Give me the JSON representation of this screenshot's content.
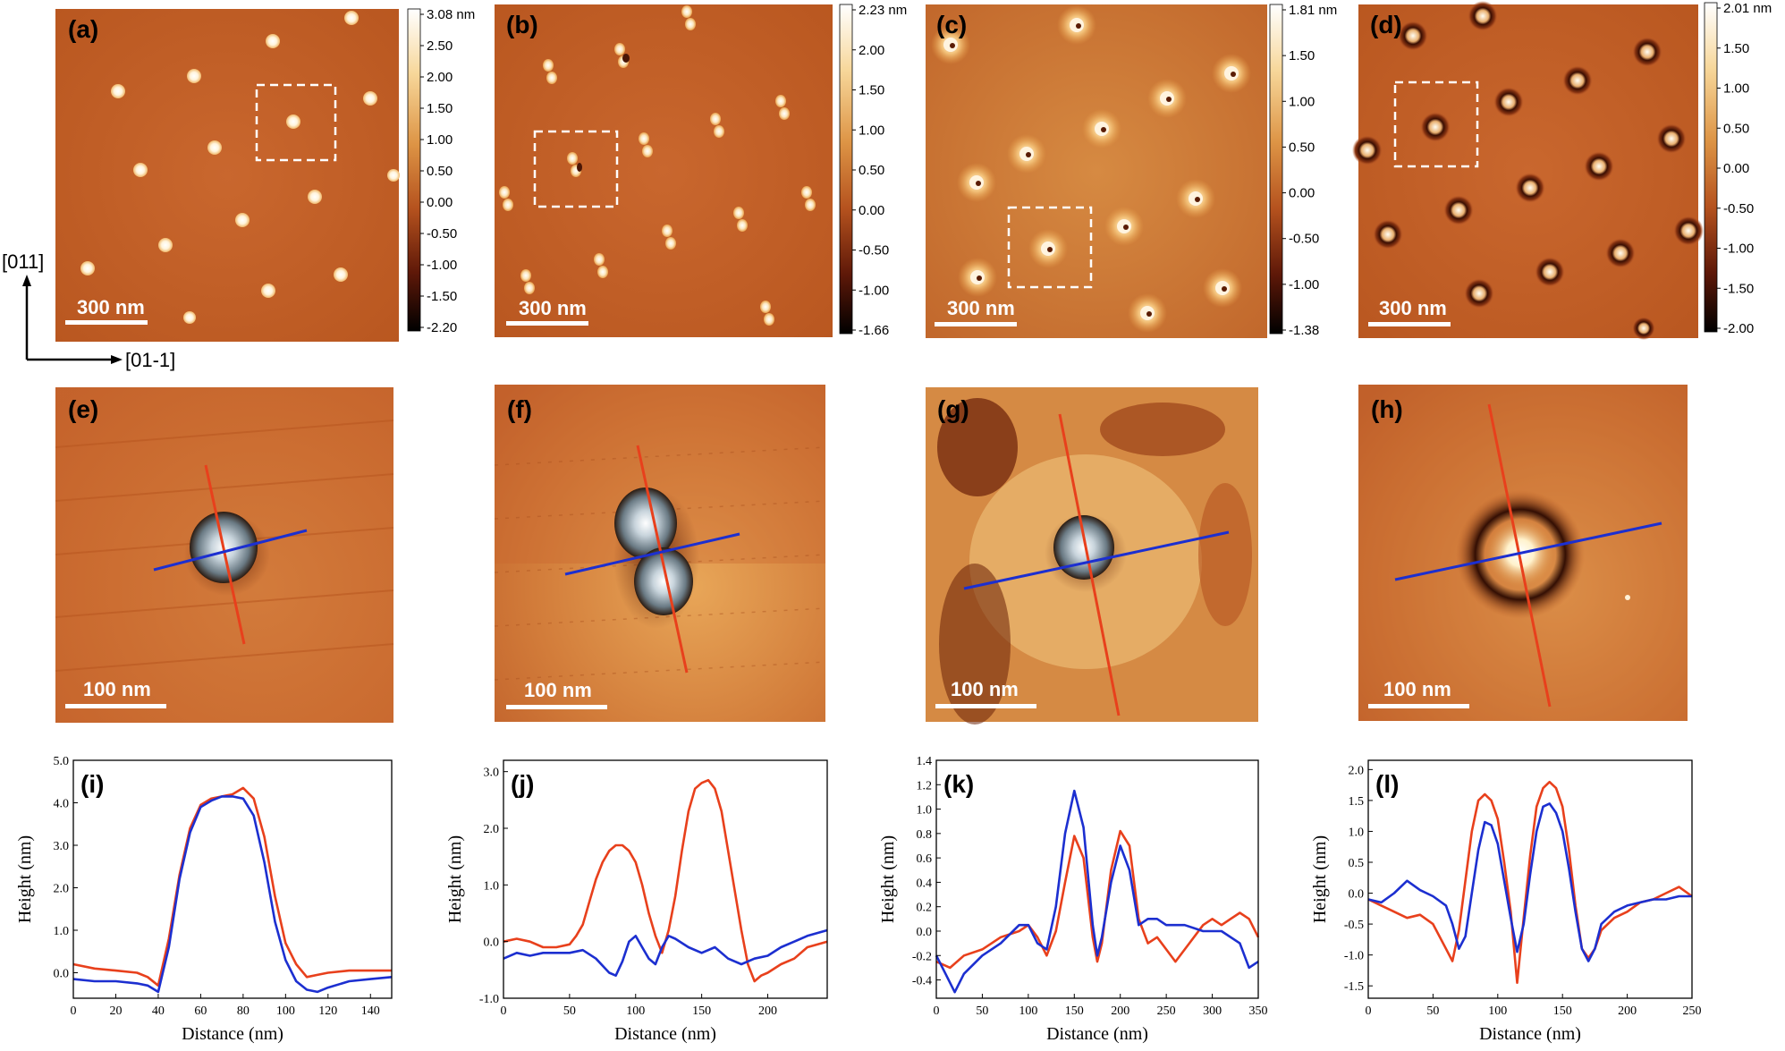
{
  "colors": {
    "afm_base": "#c2602a",
    "afm_light": "#e2a052",
    "red_profile": "#e8401c",
    "blue_profile": "#1c2fd0",
    "scalebar": "#ffffff",
    "box": "#ffffff"
  },
  "directions": {
    "vertical": "[011]",
    "horizontal": "[01-1]"
  },
  "top_panels": [
    {
      "label": "(a)",
      "scalebar": "300 nm",
      "colorbar_ticks": [
        "3.08 nm",
        "2.50",
        "2.00",
        "1.50",
        "1.00",
        "0.50",
        "0.00",
        "-0.50",
        "-1.00",
        "-1.50",
        "-2.20"
      ]
    },
    {
      "label": "(b)",
      "scalebar": "300 nm",
      "colorbar_ticks": [
        "2.23 nm",
        "2.00",
        "1.50",
        "1.00",
        "0.50",
        "0.00",
        "-0.50",
        "-1.00",
        "-1.66"
      ]
    },
    {
      "label": "(c)",
      "scalebar": "300 nm",
      "colorbar_ticks": [
        "1.81 nm",
        "1.50",
        "1.00",
        "0.50",
        "0.00",
        "-0.50",
        "-1.00",
        "-1.38"
      ]
    },
    {
      "label": "(d)",
      "scalebar": "300 nm",
      "colorbar_ticks": [
        "2.01 nm",
        "1.50",
        "1.00",
        "0.50",
        "0.00",
        "-0.50",
        "-1.00",
        "-1.50",
        "-2.00"
      ]
    }
  ],
  "zoom_panels": [
    {
      "label": "(e)",
      "scalebar": "100 nm"
    },
    {
      "label": "(f)",
      "scalebar": "100 nm"
    },
    {
      "label": "(g)",
      "scalebar": "100 nm"
    },
    {
      "label": "(h)",
      "scalebar": "100 nm"
    }
  ],
  "chart_data": [
    {
      "type": "line",
      "label": "(i)",
      "xlabel": "Distance (nm)",
      "ylabel": "Height (nm)",
      "xlim": [
        0,
        150
      ],
      "ylim": [
        -0.6,
        5.0
      ],
      "xticks": [
        "0",
        "20",
        "40",
        "60",
        "80",
        "100",
        "120",
        "140"
      ],
      "yticks": [
        "0.0",
        "1.0",
        "2.0",
        "3.0",
        "4.0",
        "5.0"
      ],
      "series": [
        {
          "name": "red",
          "color": "#e8401c",
          "x": [
            0,
            10,
            20,
            30,
            35,
            40,
            45,
            50,
            55,
            60,
            65,
            70,
            75,
            80,
            85,
            90,
            95,
            100,
            105,
            110,
            115,
            120,
            130,
            140,
            150
          ],
          "y": [
            0.2,
            0.1,
            0.05,
            0.0,
            -0.1,
            -0.3,
            0.8,
            2.3,
            3.4,
            3.95,
            4.1,
            4.15,
            4.2,
            4.35,
            4.1,
            3.2,
            1.8,
            0.7,
            0.2,
            -0.1,
            -0.05,
            0.0,
            0.05,
            0.05,
            0.05
          ]
        },
        {
          "name": "blue",
          "color": "#1c2fd0",
          "x": [
            0,
            10,
            20,
            30,
            35,
            40,
            45,
            50,
            55,
            60,
            65,
            70,
            75,
            80,
            85,
            90,
            95,
            100,
            105,
            110,
            115,
            120,
            130,
            140,
            150
          ],
          "y": [
            -0.15,
            -0.2,
            -0.2,
            -0.25,
            -0.3,
            -0.45,
            0.6,
            2.2,
            3.3,
            3.9,
            4.05,
            4.15,
            4.15,
            4.1,
            3.7,
            2.6,
            1.2,
            0.3,
            -0.2,
            -0.4,
            -0.45,
            -0.35,
            -0.2,
            -0.15,
            -0.1
          ]
        }
      ]
    },
    {
      "type": "line",
      "label": "(j)",
      "xlabel": "Distance (nm)",
      "ylabel": "Height (nm)",
      "xlim": [
        0,
        245
      ],
      "ylim": [
        -1.0,
        3.2
      ],
      "xticks": [
        "0",
        "50",
        "100",
        "150",
        "200"
      ],
      "yticks": [
        "-1.0",
        "0.0",
        "1.0",
        "2.0",
        "3.0"
      ],
      "series": [
        {
          "name": "red",
          "color": "#e8401c",
          "x": [
            0,
            10,
            20,
            30,
            40,
            50,
            55,
            60,
            65,
            70,
            75,
            80,
            85,
            90,
            95,
            100,
            105,
            110,
            115,
            120,
            125,
            130,
            135,
            140,
            145,
            150,
            155,
            160,
            165,
            170,
            175,
            180,
            185,
            190,
            195,
            200,
            210,
            220,
            230,
            245
          ],
          "y": [
            0.0,
            0.05,
            0.0,
            -0.1,
            -0.1,
            -0.05,
            0.1,
            0.3,
            0.7,
            1.1,
            1.4,
            1.6,
            1.7,
            1.7,
            1.6,
            1.4,
            1.0,
            0.5,
            0.1,
            -0.2,
            0.2,
            0.8,
            1.6,
            2.3,
            2.7,
            2.8,
            2.85,
            2.7,
            2.3,
            1.6,
            0.9,
            0.2,
            -0.4,
            -0.7,
            -0.6,
            -0.55,
            -0.4,
            -0.3,
            -0.1,
            0.0
          ]
        },
        {
          "name": "blue",
          "color": "#1c2fd0",
          "x": [
            0,
            10,
            20,
            30,
            40,
            50,
            60,
            70,
            80,
            85,
            90,
            95,
            100,
            105,
            110,
            115,
            120,
            125,
            130,
            140,
            150,
            160,
            170,
            180,
            190,
            200,
            210,
            220,
            230,
            245
          ],
          "y": [
            -0.3,
            -0.2,
            -0.25,
            -0.2,
            -0.2,
            -0.2,
            -0.15,
            -0.3,
            -0.55,
            -0.6,
            -0.35,
            0.0,
            0.1,
            -0.1,
            -0.3,
            -0.4,
            -0.1,
            0.1,
            0.05,
            -0.1,
            -0.2,
            -0.1,
            -0.3,
            -0.4,
            -0.3,
            -0.25,
            -0.1,
            0.0,
            0.1,
            0.2
          ]
        }
      ]
    },
    {
      "type": "line",
      "label": "(k)",
      "xlabel": "Distance (nm)",
      "ylabel": "Height (nm)",
      "xlim": [
        0,
        350
      ],
      "ylim": [
        -0.55,
        1.4
      ],
      "xticks": [
        "0",
        "50",
        "100",
        "150",
        "200",
        "250",
        "300",
        "350"
      ],
      "yticks": [
        "-0.4",
        "-0.2",
        "0.0",
        "0.2",
        "0.4",
        "0.6",
        "0.8",
        "1.0",
        "1.2",
        "1.4"
      ],
      "series": [
        {
          "name": "red",
          "color": "#e8401c",
          "x": [
            0,
            15,
            30,
            50,
            70,
            90,
            100,
            110,
            120,
            130,
            140,
            150,
            160,
            170,
            175,
            180,
            190,
            200,
            210,
            220,
            230,
            240,
            250,
            260,
            275,
            290,
            300,
            310,
            320,
            330,
            340,
            350
          ],
          "y": [
            -0.25,
            -0.3,
            -0.2,
            -0.15,
            -0.05,
            0.0,
            0.05,
            -0.05,
            -0.2,
            0.0,
            0.4,
            0.78,
            0.6,
            -0.05,
            -0.25,
            -0.1,
            0.5,
            0.82,
            0.7,
            0.1,
            -0.1,
            -0.05,
            -0.15,
            -0.25,
            -0.1,
            0.05,
            0.1,
            0.05,
            0.1,
            0.15,
            0.1,
            -0.05
          ]
        },
        {
          "name": "blue",
          "color": "#1c2fd0",
          "x": [
            0,
            10,
            20,
            30,
            50,
            70,
            90,
            100,
            110,
            120,
            130,
            140,
            150,
            160,
            170,
            175,
            180,
            190,
            200,
            210,
            220,
            230,
            240,
            250,
            270,
            290,
            310,
            330,
            340,
            350
          ],
          "y": [
            -0.2,
            -0.35,
            -0.5,
            -0.35,
            -0.2,
            -0.1,
            0.05,
            0.05,
            -0.1,
            -0.15,
            0.2,
            0.8,
            1.15,
            0.85,
            0.05,
            -0.2,
            -0.05,
            0.4,
            0.7,
            0.5,
            0.05,
            0.1,
            0.1,
            0.05,
            0.05,
            0.0,
            0.0,
            -0.1,
            -0.3,
            -0.25
          ]
        }
      ]
    },
    {
      "type": "line",
      "label": "(l)",
      "xlabel": "Distance (nm)",
      "ylabel": "Height (nm)",
      "xlim": [
        0,
        250
      ],
      "ylim": [
        -1.7,
        2.15
      ],
      "xticks": [
        "0",
        "50",
        "100",
        "150",
        "200",
        "250"
      ],
      "yticks": [
        "-1.5",
        "-1.0",
        "-0.5",
        "0.0",
        "0.5",
        "1.0",
        "1.5",
        "2.0"
      ],
      "series": [
        {
          "name": "red",
          "color": "#e8401c",
          "x": [
            0,
            10,
            20,
            30,
            40,
            50,
            60,
            65,
            70,
            75,
            80,
            85,
            90,
            95,
            100,
            105,
            110,
            115,
            120,
            125,
            130,
            135,
            140,
            145,
            150,
            155,
            160,
            165,
            170,
            175,
            180,
            190,
            200,
            210,
            220,
            230,
            240,
            250
          ],
          "y": [
            -0.1,
            -0.2,
            -0.3,
            -0.4,
            -0.35,
            -0.5,
            -0.9,
            -1.1,
            -0.6,
            0.2,
            1.0,
            1.5,
            1.6,
            1.5,
            1.2,
            0.5,
            -0.3,
            -1.45,
            -0.4,
            0.6,
            1.4,
            1.7,
            1.8,
            1.7,
            1.4,
            0.7,
            -0.2,
            -0.9,
            -1.05,
            -0.9,
            -0.6,
            -0.4,
            -0.3,
            -0.15,
            -0.1,
            0.0,
            0.1,
            -0.05
          ]
        },
        {
          "name": "blue",
          "color": "#1c2fd0",
          "x": [
            0,
            10,
            20,
            30,
            40,
            50,
            60,
            65,
            70,
            75,
            80,
            85,
            90,
            95,
            100,
            105,
            110,
            115,
            120,
            125,
            130,
            135,
            140,
            145,
            150,
            155,
            160,
            165,
            170,
            175,
            180,
            190,
            200,
            210,
            220,
            230,
            240,
            250
          ],
          "y": [
            -0.1,
            -0.15,
            0.0,
            0.2,
            0.05,
            -0.05,
            -0.2,
            -0.5,
            -0.9,
            -0.7,
            0.0,
            0.7,
            1.15,
            1.1,
            0.8,
            0.2,
            -0.4,
            -0.95,
            -0.5,
            0.3,
            1.0,
            1.4,
            1.45,
            1.3,
            1.0,
            0.4,
            -0.3,
            -0.9,
            -1.1,
            -0.9,
            -0.5,
            -0.3,
            -0.2,
            -0.15,
            -0.1,
            -0.1,
            -0.05,
            -0.05
          ]
        }
      ]
    }
  ]
}
